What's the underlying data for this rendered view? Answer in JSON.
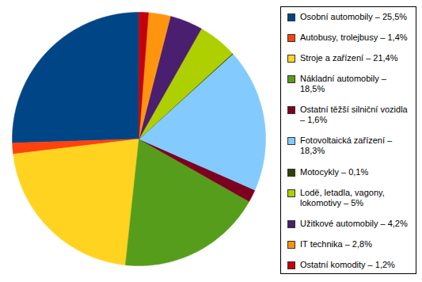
{
  "chart_data": {
    "type": "pie",
    "categories": [
      "Osobní automobily – 25,5%",
      "Autobusy, trolejbusy – 1,4%",
      "Stroje a zařízení – 21,4%",
      "Nákladní automobily – 18,5%",
      "Ostatní těžší silniční vozidla – 1,6%",
      "Fotovoltaická zařízení – 18,3%",
      "Motocykly – 0,1%",
      "Lodě, letadla, vagony, lokomotivy – 5%",
      "Užitkové automobily – 4,2%",
      "IT technika – 2,8%",
      "Ostatní komodity – 1,2%"
    ],
    "values": [
      25.5,
      1.4,
      21.4,
      18.5,
      1.6,
      18.3,
      0.1,
      5,
      4.2,
      2.8,
      1.2
    ],
    "colors": [
      "#004586",
      "#ff420e",
      "#ffd320",
      "#579d1c",
      "#7e0021",
      "#83caff",
      "#314004",
      "#aecf00",
      "#4b1f6f",
      "#ff950e",
      "#c5000b"
    ],
    "legend": "right",
    "tick_labels": false
  }
}
